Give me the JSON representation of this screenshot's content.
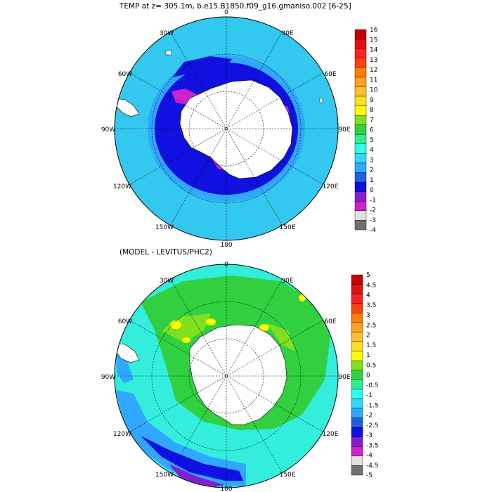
{
  "top_title": "TEMP at z= 305.1m, b.e15.B1850.f09_g16.gmaniso.002 [6-25]",
  "bottom_title": "(MODEL - LEVITUS/PHC2)",
  "longitude_labels": [
    "0",
    "30E",
    "60E",
    "90E",
    "120E",
    "150E",
    "180",
    "150W",
    "120W",
    "90W",
    "60W",
    "30W"
  ],
  "colors": {
    "ocean_top_dominant": "#33c8f0",
    "ocean_bottom_dominant": "#33eedd",
    "land": "#ffffff",
    "coast": "#000000"
  },
  "top_colorbar": {
    "labels": [
      "16",
      "15",
      "14",
      "13",
      "12",
      "11",
      "10",
      "9",
      "8",
      "7",
      "6",
      "5",
      "4",
      "3",
      "2",
      "1",
      "0",
      "-1",
      "-2",
      "-3",
      "-4"
    ],
    "colors": [
      "#c80000",
      "#e01010",
      "#ff2020",
      "#ff4010",
      "#ff8000",
      "#ffa020",
      "#ffc030",
      "#ffe020",
      "#ffff00",
      "#80e020",
      "#30d040",
      "#30ee90",
      "#30ffee",
      "#30d8ff",
      "#30a8ff",
      "#2060e0",
      "#1010e0",
      "#8020d0",
      "#d020d0",
      "#e0e0e0",
      "#707070"
    ]
  },
  "bottom_colorbar": {
    "labels": [
      "5",
      "4.5",
      "4",
      "3.5",
      "3",
      "2.5",
      "2",
      "1.5",
      "1",
      "0.5",
      "0",
      "-0.5",
      "-1",
      "-1.5",
      "-2",
      "-2.5",
      "-3",
      "-3.5",
      "-4",
      "-4.5",
      "-5"
    ],
    "colors": [
      "#c80000",
      "#e01010",
      "#ff2020",
      "#ff4010",
      "#ff8000",
      "#ffa020",
      "#ffc030",
      "#ffe020",
      "#ffff00",
      "#80e020",
      "#30d040",
      "#30ee90",
      "#30ffee",
      "#30d8ff",
      "#30a8ff",
      "#2060e0",
      "#1010e0",
      "#8020d0",
      "#d020d0",
      "#e0e0e0",
      "#707070"
    ]
  }
}
